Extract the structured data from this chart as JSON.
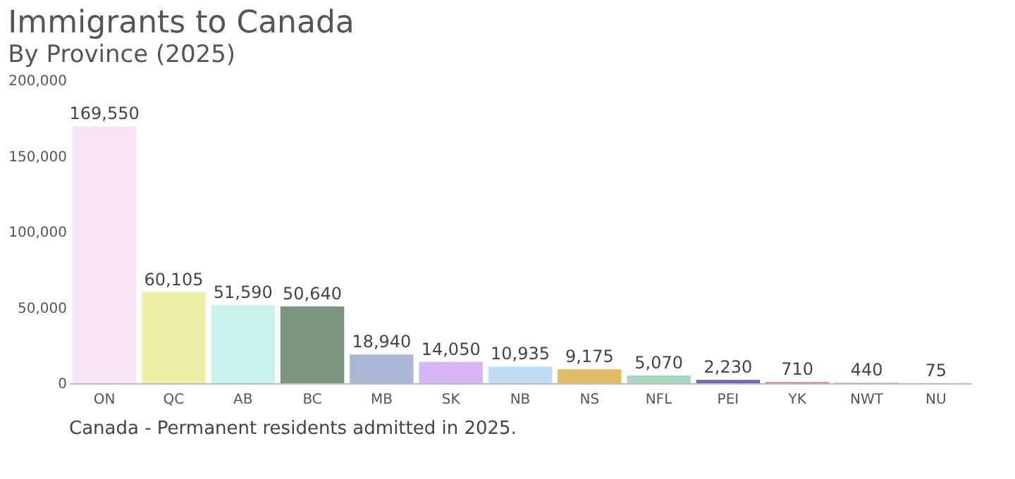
{
  "chart_data": {
    "type": "bar",
    "title": "Immigrants to Canada",
    "subtitle": "By Province (2025)",
    "categories": [
      "ON",
      "QC",
      "AB",
      "BC",
      "MB",
      "SK",
      "NB",
      "NS",
      "NFL",
      "PEI",
      "YK",
      "NWT",
      "NU"
    ],
    "values": [
      169550,
      60105,
      51590,
      50640,
      18940,
      14050,
      10935,
      9175,
      5070,
      2230,
      710,
      440,
      75
    ],
    "colors": [
      "#f9e4f3",
      "#ecefa4",
      "#c9f3ec",
      "#7a947e",
      "#aab8d6",
      "#d8b6f5",
      "#bfdcf2",
      "#e2bc66",
      "#a9d6c0",
      "#6e68b8",
      "#d87a7a",
      "#c8c8c8",
      "#c8c8c8"
    ],
    "value_labels": [
      "169,550",
      "60,105",
      "51,590",
      "50,640",
      "18,940",
      "14,050",
      "10,935",
      "9,175",
      "5,070",
      "2,230",
      "710",
      "440",
      "75"
    ],
    "ylim": [
      0,
      200000
    ],
    "yticks": [
      0,
      {
        "value": 50000,
        "label": "50,000"
      },
      {
        "value": 100000,
        "label": "100,000"
      },
      {
        "value": 150000,
        "label": "150,000"
      },
      {
        "value": 200000,
        "label": "200,000"
      }
    ],
    "grid": false,
    "annotations": [
      "Canada - Permanent residents admitted in 2025."
    ]
  }
}
